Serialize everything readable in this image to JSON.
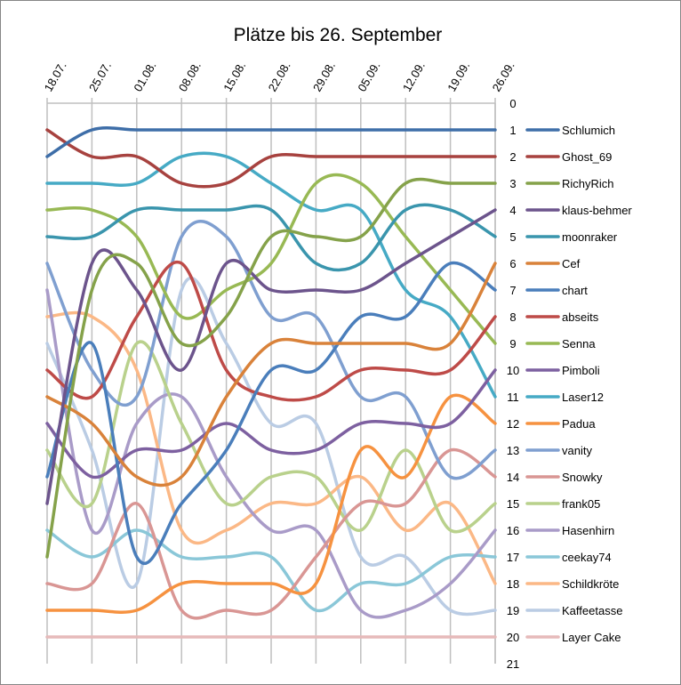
{
  "chart_data": {
    "type": "line",
    "title": "Plätze bis 26. September",
    "xlabel": "",
    "ylabel": "",
    "x": [
      "18.07.",
      "25.07.",
      "01.08.",
      "08.08.",
      "15.08.",
      "22.08.",
      "29.08.",
      "05.09.",
      "12.09.",
      "19.09.",
      "26.09."
    ],
    "y_ticks": [
      "0",
      "1",
      "2",
      "3",
      "4",
      "5",
      "6",
      "7",
      "8",
      "9",
      "10",
      "11",
      "12",
      "13",
      "14",
      "15",
      "16",
      "17",
      "18",
      "19",
      "20",
      "21"
    ],
    "ylim": [
      21,
      0
    ],
    "grid": "vertical",
    "legend_position": "right",
    "smooth": true,
    "series": [
      {
        "name": "Schlumich",
        "color": "#3E6EA8",
        "values": [
          2,
          1,
          1,
          1,
          1,
          1,
          1,
          1,
          1,
          1,
          1
        ]
      },
      {
        "name": "Ghost_69",
        "color": "#A7423F",
        "values": [
          1,
          2,
          2,
          3,
          3,
          2,
          2,
          2,
          2,
          2,
          2
        ]
      },
      {
        "name": "RichyRich",
        "color": "#85A24A",
        "values": [
          17,
          7,
          6,
          9,
          8,
          5,
          5,
          5,
          3,
          3,
          3
        ]
      },
      {
        "name": "klaus-behmer",
        "color": "#6C548C",
        "values": [
          15,
          6,
          7,
          10,
          6,
          7,
          7,
          7,
          6,
          5,
          4
        ]
      },
      {
        "name": "moonraker",
        "color": "#3A95AD",
        "values": [
          5,
          5,
          4,
          4,
          4,
          4,
          6,
          6,
          4,
          4,
          5
        ]
      },
      {
        "name": "Cef",
        "color": "#D9823A",
        "values": [
          11,
          12,
          14,
          14,
          11,
          9,
          9,
          9,
          9,
          9,
          6
        ]
      },
      {
        "name": "chart",
        "color": "#4A7EBB",
        "values": [
          14,
          9,
          17,
          15,
          13,
          10,
          10,
          8,
          8,
          6,
          7
        ]
      },
      {
        "name": "abseits",
        "color": "#BE4B48",
        "values": [
          10,
          11,
          8,
          6,
          10,
          11,
          11,
          10,
          10,
          10,
          8
        ]
      },
      {
        "name": "Senna",
        "color": "#98B954",
        "values": [
          4,
          4,
          5,
          8,
          7,
          6,
          3,
          3,
          5,
          7,
          9
        ]
      },
      {
        "name": "Pimboli",
        "color": "#7D60A0",
        "values": [
          12,
          14,
          13,
          13,
          12,
          13,
          13,
          12,
          12,
          12,
          10
        ]
      },
      {
        "name": "Laser12",
        "color": "#46AAC5",
        "values": [
          3,
          3,
          3,
          2,
          2,
          3,
          4,
          4,
          7,
          8,
          11
        ]
      },
      {
        "name": "Padua",
        "color": "#F69240",
        "values": [
          19,
          19,
          19,
          18,
          18,
          18,
          18,
          13,
          14,
          11,
          12
        ]
      },
      {
        "name": "vanity",
        "color": "#7F9FD0",
        "values": [
          6,
          10,
          11,
          5,
          5,
          8,
          8,
          11,
          11,
          14,
          13
        ]
      },
      {
        "name": "Snowky",
        "color": "#D99694",
        "values": [
          18,
          18,
          15,
          19,
          19,
          19,
          17,
          15,
          15,
          13,
          14
        ]
      },
      {
        "name": "frank05",
        "color": "#B9D18C",
        "values": [
          13,
          15,
          9,
          12,
          15,
          14,
          14,
          16,
          13,
          16,
          15
        ]
      },
      {
        "name": "Hasenhirn",
        "color": "#A99BC8",
        "values": [
          7,
          16,
          12,
          11,
          14,
          16,
          16,
          19,
          19,
          18,
          16
        ]
      },
      {
        "name": "ceekay74",
        "color": "#8AC7D8",
        "values": [
          16,
          17,
          16,
          17,
          17,
          17,
          19,
          18,
          18,
          17,
          17
        ]
      },
      {
        "name": "Schildkröte",
        "color": "#FBB886",
        "values": [
          8,
          8,
          10,
          16,
          16,
          15,
          15,
          14,
          16,
          15,
          18
        ]
      },
      {
        "name": "Kaffeetasse",
        "color": "#BACCE4",
        "values": [
          9,
          13,
          18,
          7,
          9,
          12,
          12,
          17,
          17,
          19,
          19
        ]
      },
      {
        "name": "Layer Cake",
        "color": "#E6BABA",
        "values": [
          20,
          20,
          20,
          20,
          20,
          20,
          20,
          20,
          20,
          20,
          20
        ]
      }
    ]
  }
}
